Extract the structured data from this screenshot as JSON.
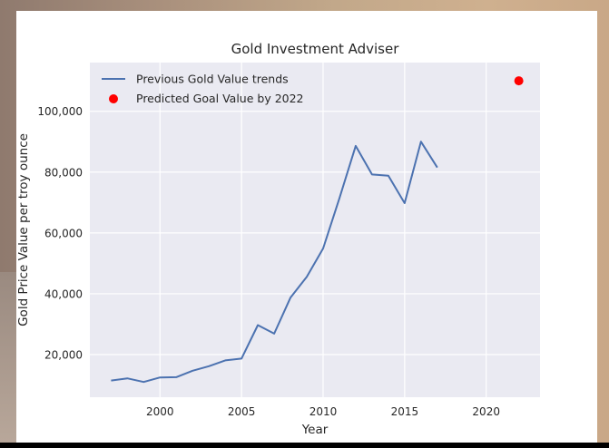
{
  "chart_data": {
    "type": "line",
    "title": "Gold Investment Adviser",
    "xlabel": "Year",
    "ylabel": "Gold Price Value per troy ounce",
    "xlim": [
      1995.7,
      2023.3
    ],
    "ylim": [
      6000,
      116000
    ],
    "x_ticks": [
      2000,
      2005,
      2010,
      2015,
      2020
    ],
    "x_tick_labels": [
      "2000",
      "2005",
      "2010",
      "2015",
      "2020"
    ],
    "y_ticks": [
      20000,
      40000,
      60000,
      80000,
      100000
    ],
    "y_tick_labels": [
      "20,000",
      "40,000",
      "60,000",
      "80,000",
      "100,000"
    ],
    "grid": true,
    "legend_position": "top-left",
    "colors": {
      "plot_bg": "#eaeaf2",
      "line": "#4c72b0",
      "marker": "#ff0000",
      "grid": "#ffffff"
    },
    "series": [
      {
        "name": "Previous Gold Value trends",
        "kind": "line",
        "x": [
          1997,
          1998,
          1999,
          2000,
          2001,
          2002,
          2003,
          2004,
          2005,
          2006,
          2007,
          2008,
          2009,
          2010,
          2011,
          2012,
          2013,
          2014,
          2015,
          2016,
          2017
        ],
        "y": [
          11500,
          12200,
          11000,
          12500,
          12600,
          14700,
          16200,
          18100,
          18700,
          29700,
          26900,
          38700,
          45600,
          54900,
          71400,
          88600,
          79200,
          78800,
          69800,
          90000,
          81500
        ]
      },
      {
        "name": "Predicted Goal Value by 2022",
        "kind": "scatter",
        "x": [
          2022
        ],
        "y": [
          110000
        ]
      }
    ]
  }
}
